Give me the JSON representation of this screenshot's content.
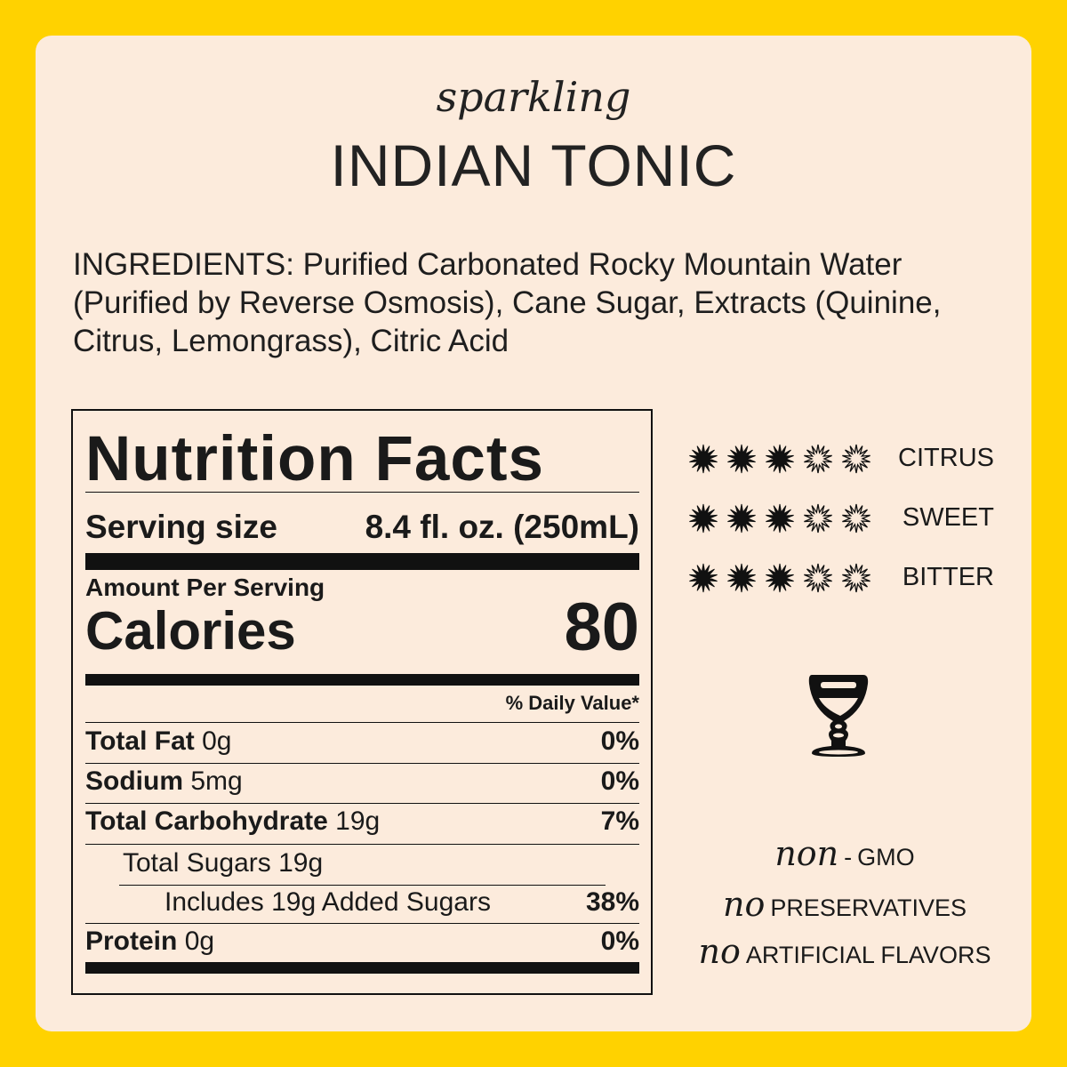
{
  "header": {
    "subtitle": "sparkling",
    "title": "INDIAN TONIC"
  },
  "ingredients": "INGREDIENTS: Purified Carbonated Rocky Mountain Water (Purified by Reverse Osmosis), Cane Sugar, Extracts (Quinine, Citrus, Lemongrass), Citric Acid",
  "nutrition": {
    "title": "Nutrition Facts",
    "serving_label": "Serving size",
    "serving_value": "8.4 fl. oz. (250mL)",
    "amount_per_serving": "Amount Per Serving",
    "calories_label": "Calories",
    "calories_value": "80",
    "daily_value_header": "% Daily Value*",
    "rows": [
      {
        "label": "Total Fat",
        "amount": "0g",
        "dv": "0%"
      },
      {
        "label": "Sodium",
        "amount": "5mg",
        "dv": "0%"
      },
      {
        "label": "Total Carbohydrate",
        "amount": "19g",
        "dv": "7%"
      },
      {
        "label": "Total Sugars 19g",
        "amount": "",
        "dv": ""
      },
      {
        "label": "Includes 19g Added Sugars",
        "amount": "",
        "dv": "38%"
      },
      {
        "label": "Protein",
        "amount": "0g",
        "dv": "0%"
      }
    ]
  },
  "flavor_profile": [
    {
      "label": "CITRUS",
      "rating": 3,
      "max": 5
    },
    {
      "label": "SWEET",
      "rating": 3,
      "max": 5
    },
    {
      "label": "BITTER",
      "rating": 3,
      "max": 5
    }
  ],
  "glass_icon": "cordial-glass-icon",
  "claims": [
    {
      "prefix": "non",
      "dash": "-",
      "text": "GMO"
    },
    {
      "prefix": "no",
      "text": "PRESERVATIVES"
    },
    {
      "prefix": "no",
      "text": "ARTIFICIAL FLAVORS"
    }
  ],
  "colors": {
    "border": "#FFD200",
    "card": "#FCEBDC",
    "ink": "#111111"
  }
}
